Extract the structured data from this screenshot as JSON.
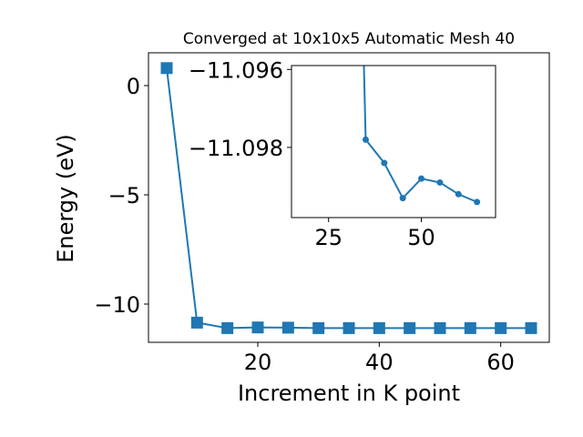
{
  "chart_data": [
    {
      "type": "line",
      "title": "Converged at 10x10x5 Automatic Mesh 40",
      "xlabel": "Increment in K point",
      "ylabel": "Energy (eV)",
      "xlim": [
        2,
        68
      ],
      "ylim": [
        -11.75,
        1.5
      ],
      "xticks": [
        {
          "v": 20,
          "label": "20"
        },
        {
          "v": 40,
          "label": "40"
        },
        {
          "v": 60,
          "label": "60"
        }
      ],
      "yticks": [
        {
          "v": 0,
          "label": "0"
        },
        {
          "v": -5,
          "label": "−5"
        },
        {
          "v": -10,
          "label": "−10"
        }
      ],
      "grid": false,
      "color": "#1f77b4",
      "series": [
        {
          "x": [
            5,
            10,
            15,
            20,
            25,
            30,
            35,
            40,
            45,
            50,
            55,
            60,
            65
          ],
          "y": [
            0.8,
            -10.85,
            -11.1,
            -11.07,
            -11.08,
            -11.1,
            -11.1,
            -11.1,
            -11.1,
            -11.1,
            -11.1,
            -11.1,
            -11.1
          ]
        }
      ]
    },
    {
      "type": "line",
      "title": "",
      "xlim": [
        15,
        70
      ],
      "ylim": [
        -11.0998,
        -11.0959
      ],
      "xticks": [
        {
          "v": 25,
          "label": "25"
        },
        {
          "v": 50,
          "label": "50"
        }
      ],
      "yticks": [
        {
          "v": -11.098,
          "label": "−11.098"
        },
        {
          "v": -11.096,
          "label": "−11.096"
        }
      ],
      "grid": false,
      "color": "#1f77b4",
      "series": [
        {
          "x": [
            35,
            40,
            45,
            50,
            55,
            60,
            65
          ],
          "y": [
            -11.0978,
            -11.0984,
            -11.0993,
            -11.0988,
            -11.0989,
            -11.0992,
            -11.0994
          ],
          "lead_in": {
            "x": 33,
            "y": -11.09
          }
        }
      ]
    }
  ]
}
